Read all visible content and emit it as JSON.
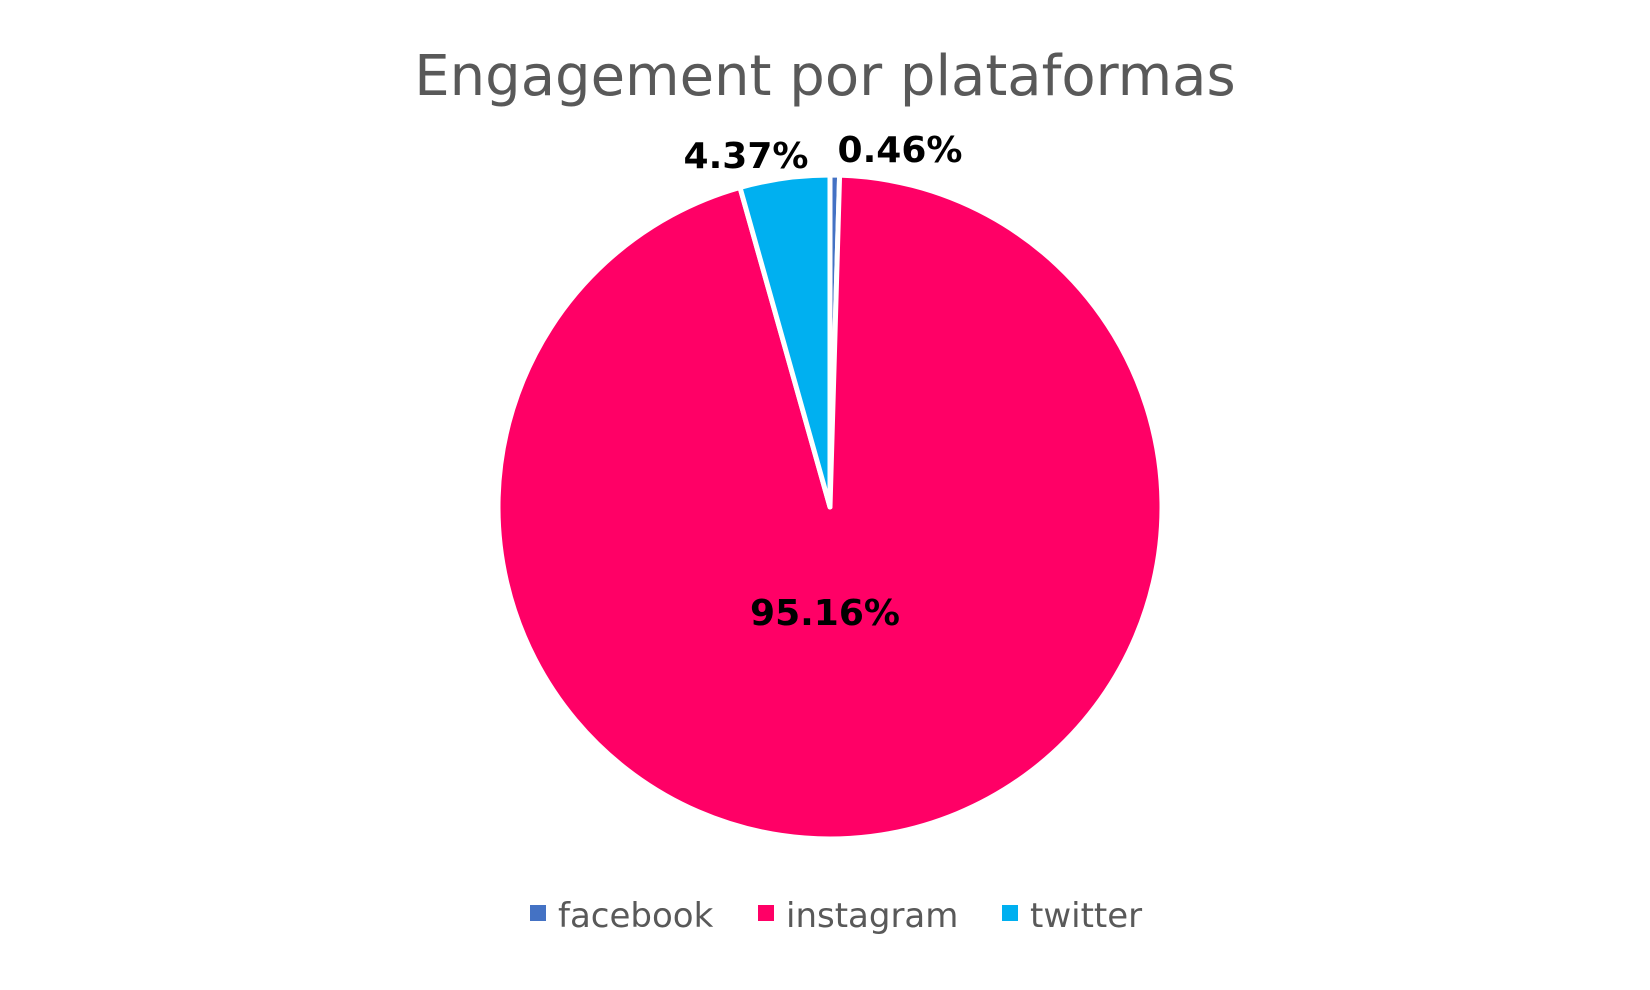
{
  "chart_data": {
    "type": "pie",
    "title": "Engagement por plataformas",
    "slices": [
      {
        "name": "facebook",
        "value": 0.46,
        "label": "0.46%",
        "color": "#4472C4"
      },
      {
        "name": "instagram",
        "value": 95.16,
        "label": "95.16%",
        "color": "#FF0066"
      },
      {
        "name": "twitter",
        "value": 4.37,
        "label": "4.37%",
        "color": "#00B0F0"
      }
    ],
    "legend_position": "bottom"
  }
}
